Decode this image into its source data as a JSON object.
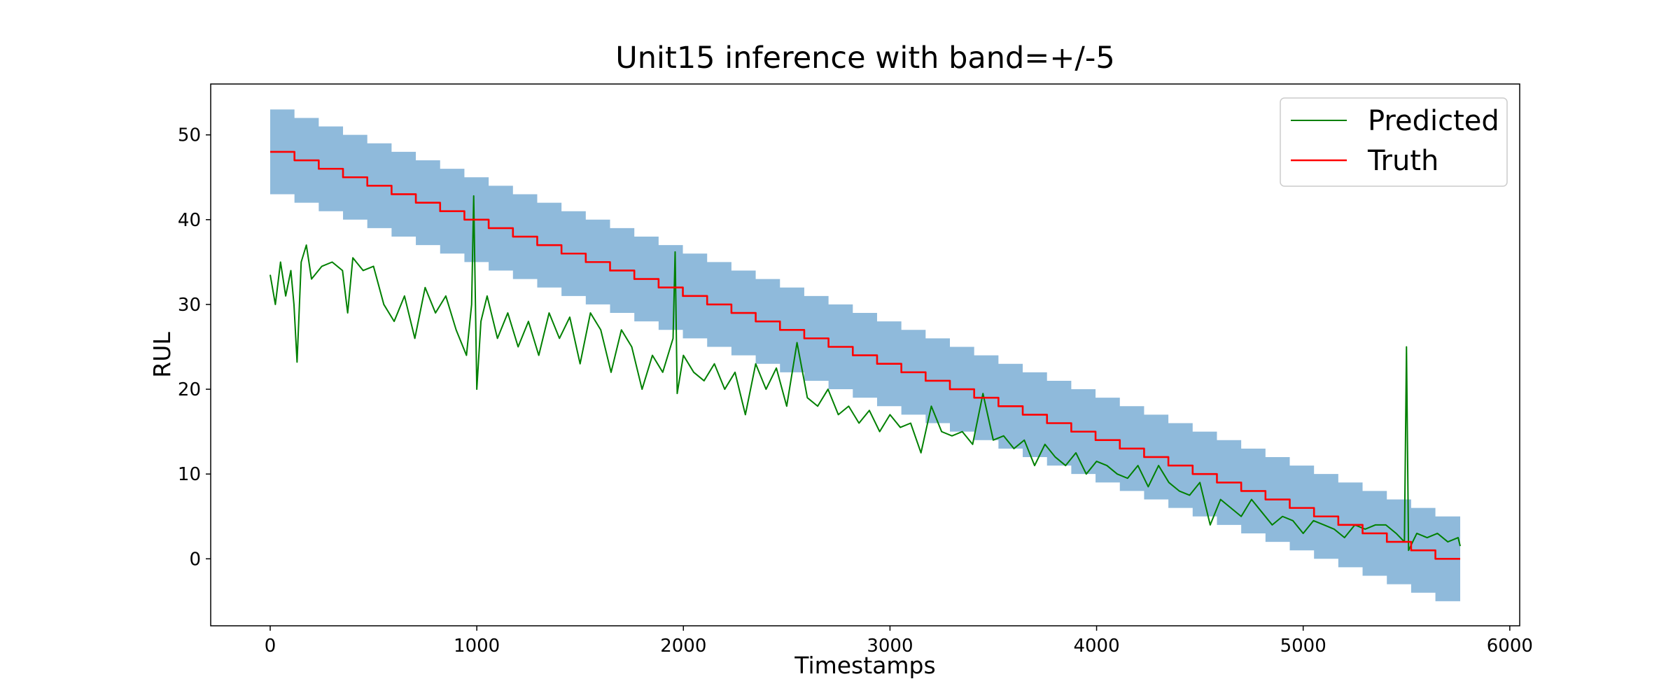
{
  "chart_data": {
    "type": "line",
    "title": "Unit15 inference with band=+/-5",
    "x_label": "Timestamps",
    "y_label": "RUL",
    "xlim": [
      -288,
      6048
    ],
    "ylim": [
      -7.9,
      56
    ],
    "xticks": [
      0,
      1000,
      2000,
      3000,
      4000,
      5000,
      6000
    ],
    "yticks": [
      0,
      10,
      20,
      30,
      40,
      50
    ],
    "grid": false,
    "legend": "upper right",
    "series": [
      {
        "name": "Predicted",
        "color": "#008000",
        "x": [
          0,
          25,
          50,
          75,
          100,
          115,
          130,
          150,
          175,
          200,
          250,
          300,
          350,
          375,
          400,
          450,
          500,
          550,
          600,
          650,
          700,
          750,
          800,
          850,
          900,
          950,
          975,
          985,
          1000,
          1020,
          1050,
          1100,
          1150,
          1200,
          1250,
          1300,
          1350,
          1400,
          1450,
          1500,
          1550,
          1600,
          1650,
          1700,
          1750,
          1800,
          1850,
          1900,
          1950,
          1960,
          1970,
          2000,
          2050,
          2100,
          2150,
          2200,
          2250,
          2300,
          2350,
          2400,
          2450,
          2500,
          2550,
          2600,
          2650,
          2700,
          2750,
          2800,
          2850,
          2900,
          2950,
          3000,
          3050,
          3100,
          3150,
          3200,
          3250,
          3300,
          3350,
          3400,
          3450,
          3500,
          3550,
          3600,
          3650,
          3700,
          3750,
          3800,
          3850,
          3900,
          3950,
          4000,
          4050,
          4100,
          4150,
          4200,
          4250,
          4300,
          4350,
          4400,
          4450,
          4500,
          4550,
          4600,
          4650,
          4700,
          4750,
          4800,
          4850,
          4900,
          4950,
          5000,
          5050,
          5100,
          5150,
          5200,
          5250,
          5300,
          5350,
          5400,
          5450,
          5490,
          5500,
          5510,
          5550,
          5600,
          5650,
          5700,
          5750,
          5760
        ],
        "values": [
          33.5,
          30,
          35,
          31,
          34,
          30,
          23.2,
          35,
          37,
          33,
          34.5,
          35,
          34,
          29,
          35.5,
          34,
          34.5,
          30,
          28,
          31,
          26,
          32,
          29,
          31,
          27,
          24,
          30,
          42.8,
          20,
          28,
          31,
          26,
          29,
          25,
          28,
          24,
          29,
          26,
          28.5,
          23,
          29,
          27,
          22,
          27,
          25,
          20,
          24,
          22,
          26,
          36.2,
          19.5,
          24,
          22,
          21,
          23,
          20,
          22,
          17,
          23,
          20,
          22.5,
          18,
          25.5,
          19,
          18,
          20,
          17,
          18,
          16,
          17.5,
          15,
          17,
          15.5,
          16,
          12.5,
          18,
          15,
          14.5,
          15,
          13.5,
          19.5,
          14,
          14.5,
          13,
          14,
          11,
          13.5,
          12,
          11,
          12.5,
          10,
          11.5,
          11,
          10,
          9.5,
          11,
          8.5,
          11,
          9,
          8,
          7.5,
          9,
          4,
          7,
          6,
          5,
          7,
          5.5,
          4,
          5,
          4.5,
          3,
          4.5,
          4,
          3.5,
          2.5,
          4,
          3.5,
          4,
          4,
          3,
          2,
          25,
          1,
          3,
          2.5,
          3,
          2,
          2.5,
          1.5
        ]
      },
      {
        "name": "Truth",
        "color": "#ff0000",
        "step": "post",
        "x": [
          0,
          117.5,
          235,
          352.5,
          470,
          587.5,
          705,
          822.5,
          940,
          1057.5,
          1175,
          1292.5,
          1410,
          1527.5,
          1645,
          1762.5,
          1880,
          1997.5,
          2115,
          2232.5,
          2350,
          2467.5,
          2585,
          2702.5,
          2820,
          2937.5,
          3055,
          3172.5,
          3290,
          3407.5,
          3525,
          3642.5,
          3760,
          3877.5,
          3995,
          4112.5,
          4230,
          4347.5,
          4465,
          4582.5,
          4700,
          4817.5,
          4935,
          5052.5,
          5170,
          5287.5,
          5405,
          5522.5,
          5640,
          5760
        ],
        "values": [
          48,
          47,
          46,
          45,
          44,
          43,
          42,
          41,
          40,
          39,
          38,
          37,
          36,
          35,
          34,
          33,
          32,
          31,
          30,
          29,
          28,
          27,
          26,
          25,
          24,
          23,
          22,
          21,
          20,
          19,
          18,
          17,
          16,
          15,
          14,
          13,
          12,
          11,
          10,
          9,
          8,
          7,
          6,
          5,
          4,
          3,
          2,
          1,
          0,
          0
        ]
      }
    ],
    "band": {
      "color": "#8fbadb",
      "step": "post",
      "upper": [
        53,
        52,
        51,
        50,
        49,
        48,
        47,
        46,
        45,
        44,
        43,
        42,
        41,
        40,
        39,
        38,
        37,
        36,
        35,
        34,
        33,
        32,
        31,
        30,
        29,
        28,
        27,
        26,
        25,
        24,
        23,
        22,
        21,
        20,
        19,
        18,
        17,
        16,
        15,
        14,
        13,
        12,
        11,
        10,
        9,
        8,
        7,
        6,
        5,
        5
      ],
      "lower": [
        43,
        42,
        41,
        40,
        39,
        38,
        37,
        36,
        35,
        34,
        33,
        32,
        31,
        30,
        29,
        28,
        27,
        26,
        25,
        24,
        23,
        22,
        21,
        20,
        19,
        18,
        17,
        16,
        15,
        14,
        13,
        12,
        11,
        10,
        9,
        8,
        7,
        6,
        5,
        4,
        3,
        2,
        1,
        0,
        -1,
        -2,
        -3,
        -4,
        -5,
        -5
      ]
    }
  }
}
